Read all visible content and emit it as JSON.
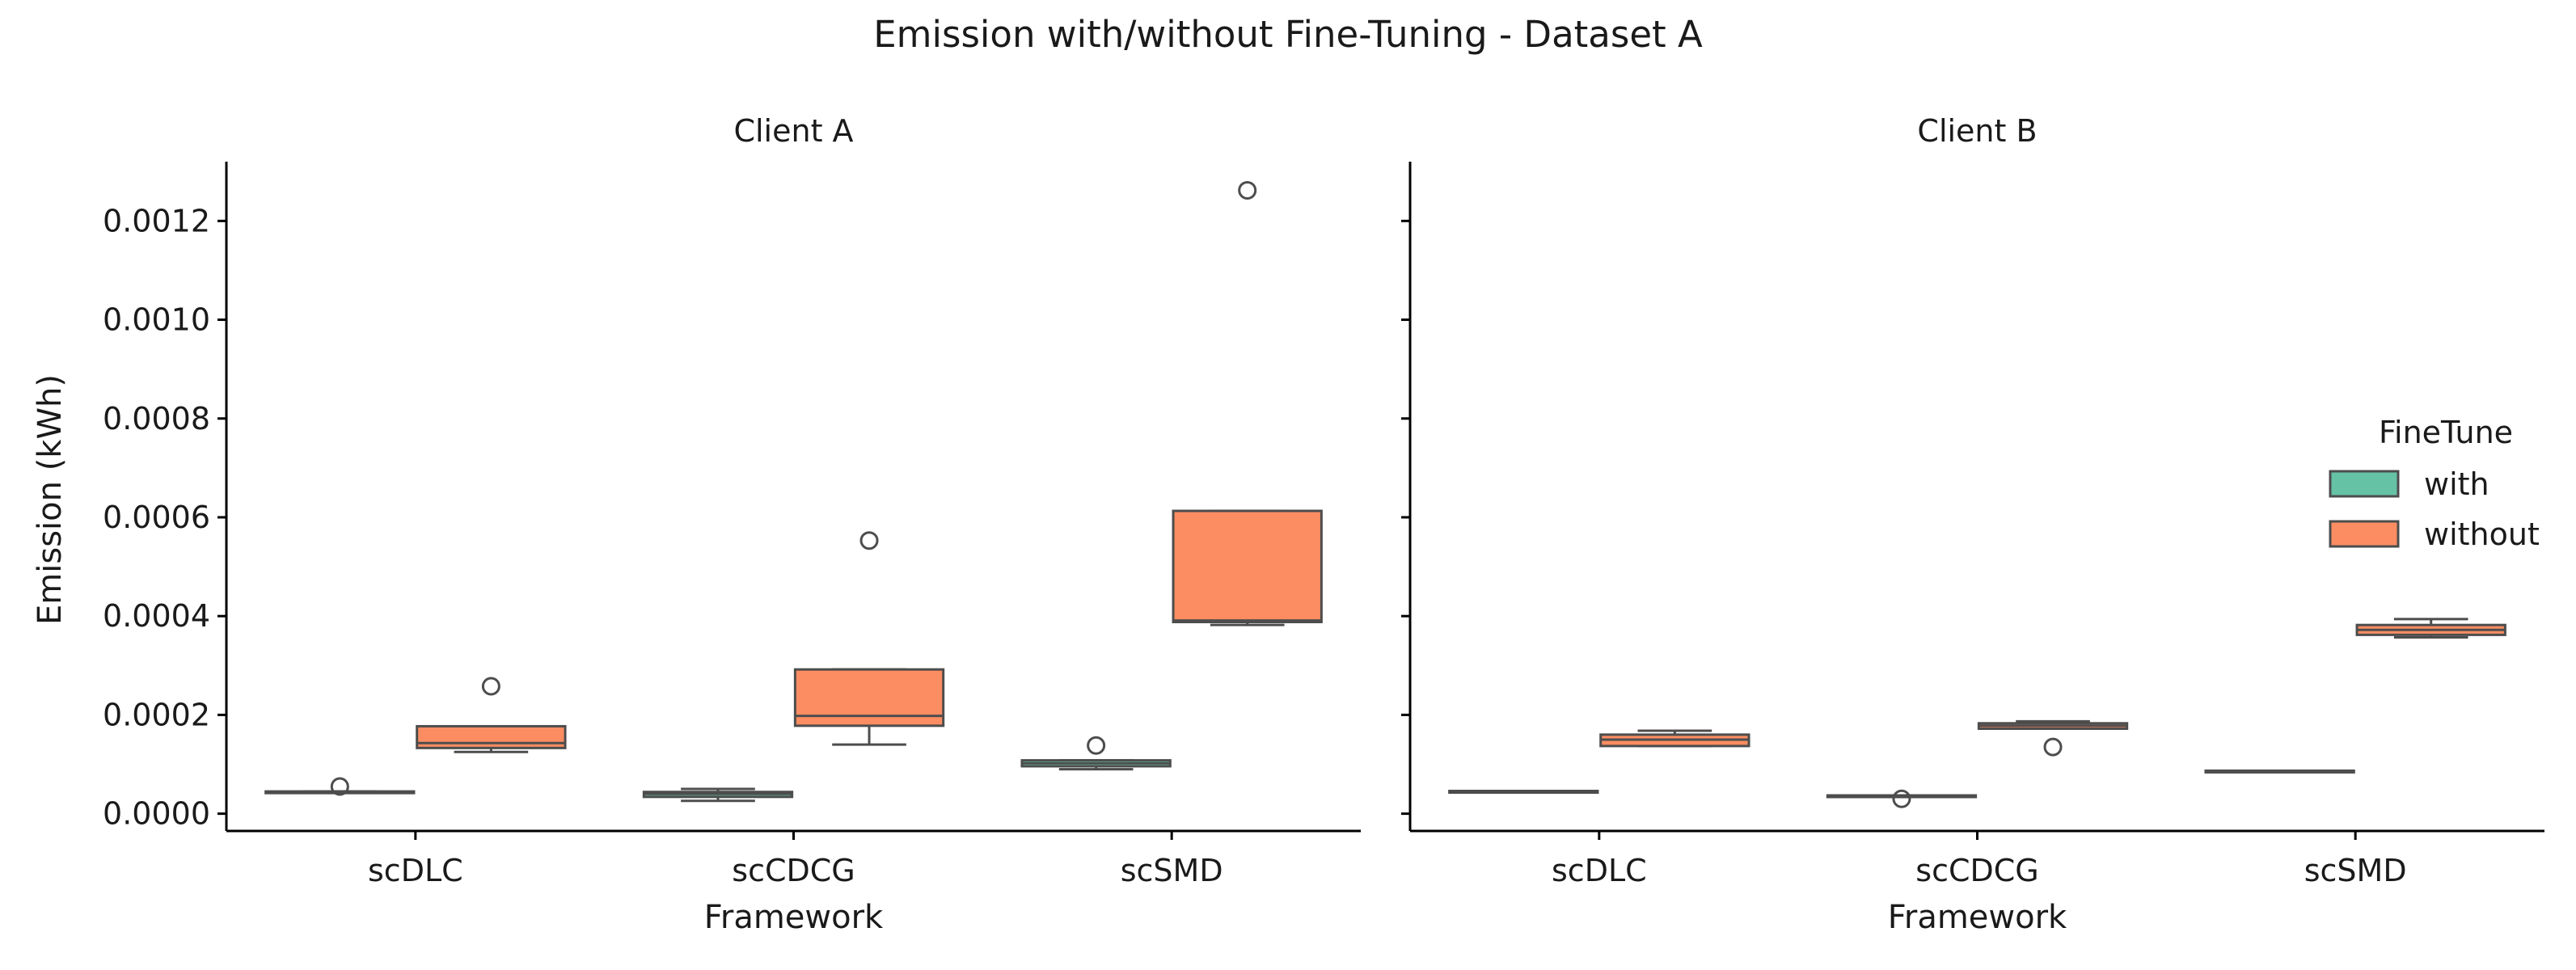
{
  "chart_data": {
    "type": "box",
    "title": "Emission with/without Fine-Tuning - Dataset A",
    "ylabel": "Emission (kWh)",
    "xlabel": "Framework",
    "ylim": [
      -3.5e-05,
      0.00132
    ],
    "yticks": [
      0.0,
      0.0002,
      0.0004,
      0.0006,
      0.0008,
      0.001,
      0.0012
    ],
    "ytick_labels": [
      "0.0000",
      "0.0002",
      "0.0004",
      "0.0006",
      "0.0008",
      "0.0010",
      "0.0012"
    ],
    "categories": [
      "scDLC",
      "scCDCG",
      "scSMD"
    ],
    "legend": {
      "title": "FineTune",
      "position": "right",
      "entries": [
        {
          "label": "with",
          "color": "#66c2a5"
        },
        {
          "label": "without",
          "color": "#fc8d62"
        }
      ]
    },
    "panels": [
      {
        "title": "Client A",
        "boxes": [
          {
            "category": "scDLC",
            "hue": "with",
            "whislo": 4.4e-05,
            "q1": 4.4e-05,
            "med": 4.45e-05,
            "q3": 4.5e-05,
            "whishi": 4.5e-05,
            "fliers": [
              5.5e-05
            ]
          },
          {
            "category": "scDLC",
            "hue": "without",
            "whislo": 0.000125,
            "q1": 0.000133,
            "med": 0.000143,
            "q3": 0.000177,
            "whishi": 0.000177,
            "fliers": [
              0.000258
            ]
          },
          {
            "category": "scCDCG",
            "hue": "with",
            "whislo": 2.6e-05,
            "q1": 3.4e-05,
            "med": 4e-05,
            "q3": 4.4e-05,
            "whishi": 5e-05,
            "fliers": []
          },
          {
            "category": "scCDCG",
            "hue": "without",
            "whislo": 0.00014,
            "q1": 0.000178,
            "med": 0.000198,
            "q3": 0.000292,
            "whishi": 0.000292,
            "fliers": [
              0.000553
            ]
          },
          {
            "category": "scSMD",
            "hue": "with",
            "whislo": 9e-05,
            "q1": 9.6e-05,
            "med": 0.000102,
            "q3": 0.000108,
            "whishi": 0.000108,
            "fliers": [
              0.000138
            ]
          },
          {
            "category": "scSMD",
            "hue": "without",
            "whislo": 0.000382,
            "q1": 0.000388,
            "med": 0.000391,
            "q3": 0.000613,
            "whishi": 0.000613,
            "fliers": [
              0.001262
            ]
          }
        ]
      },
      {
        "title": "Client B",
        "boxes": [
          {
            "category": "scDLC",
            "hue": "with",
            "whislo": 4.4e-05,
            "q1": 4.4e-05,
            "med": 4.45e-05,
            "q3": 4.6e-05,
            "whishi": 4.6e-05,
            "fliers": []
          },
          {
            "category": "scDLC",
            "hue": "without",
            "whislo": 0.000137,
            "q1": 0.000137,
            "med": 0.00015,
            "q3": 0.00016,
            "whishi": 0.000168,
            "fliers": []
          },
          {
            "category": "scCDCG",
            "hue": "with",
            "whislo": 3.5e-05,
            "q1": 3.5e-05,
            "med": 3.6e-05,
            "q3": 3.7e-05,
            "whishi": 3.7e-05,
            "fliers": [
              3e-05
            ]
          },
          {
            "category": "scCDCG",
            "hue": "without",
            "whislo": 0.000172,
            "q1": 0.000172,
            "med": 0.000178,
            "q3": 0.000183,
            "whishi": 0.000187,
            "fliers": [
              0.000135
            ]
          },
          {
            "category": "scSMD",
            "hue": "with",
            "whislo": 8.5e-05,
            "q1": 8.5e-05,
            "med": 8.6e-05,
            "q3": 8.7e-05,
            "whishi": 8.7e-05,
            "fliers": []
          },
          {
            "category": "scSMD",
            "hue": "without",
            "whislo": 0.000357,
            "q1": 0.000362,
            "med": 0.000372,
            "q3": 0.000382,
            "whishi": 0.000394,
            "fliers": []
          }
        ]
      }
    ]
  }
}
